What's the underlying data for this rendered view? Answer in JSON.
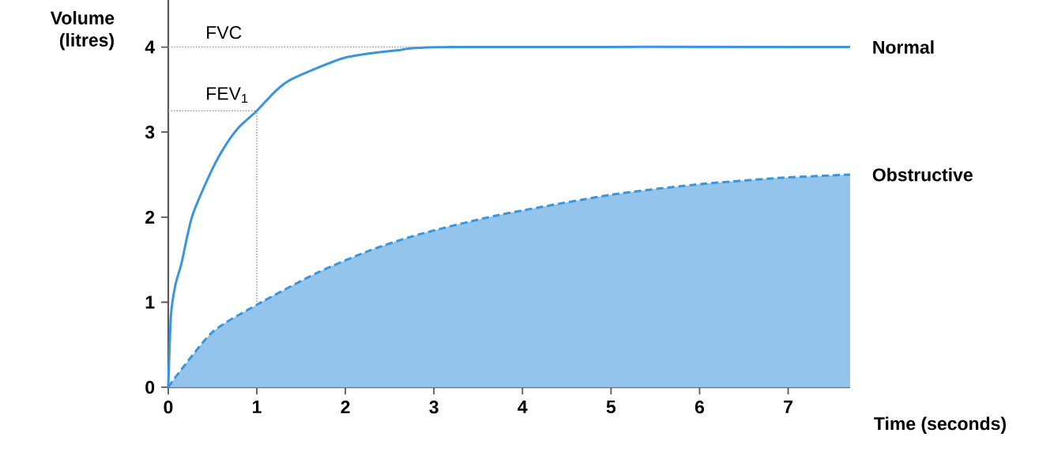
{
  "chart_data": {
    "type": "line",
    "xlabel": "Time (seconds)",
    "ylabel": "Volume (litres)",
    "xlim": [
      0,
      7.7
    ],
    "ylim": [
      0,
      4.57
    ],
    "xticks": [
      0,
      1,
      2,
      3,
      4,
      5,
      6,
      7
    ],
    "yticks": [
      0,
      1,
      2,
      3,
      4
    ],
    "legend": false,
    "series": [
      {
        "name": "Normal",
        "line_style": "solid",
        "color": "#3a96dc",
        "x": [
          0,
          0.03,
          0.08,
          0.15,
          0.27,
          0.5,
          0.65,
          0.8,
          1,
          1.2,
          1.39,
          1.98,
          2.58,
          3.2,
          7.7
        ],
        "values": [
          0,
          0.84,
          1.2,
          1.46,
          2.01,
          2.57,
          2.85,
          3.06,
          3.25,
          3.47,
          3.62,
          3.87,
          3.96,
          4,
          4
        ]
      },
      {
        "name": "Obstructive",
        "type": "area",
        "line_style": "dashed",
        "color": "#3a96dc",
        "x": [
          0,
          0.09,
          0.5,
          1,
          1.69,
          2.28,
          2.84,
          3.71,
          4.98,
          5.93,
          6.88,
          7.7
        ],
        "values": [
          0,
          0.13,
          0.65,
          0.97,
          1.35,
          1.61,
          1.8,
          2.02,
          2.26,
          2.38,
          2.46,
          2.5
        ]
      }
    ],
    "ref_lines": [
      {
        "axis": "y",
        "value": 4,
        "label": "FVC"
      },
      {
        "axis": "y",
        "value": 3.25,
        "label": "FEV$_{1}$"
      },
      {
        "axis": "x",
        "value": 1
      }
    ]
  }
}
